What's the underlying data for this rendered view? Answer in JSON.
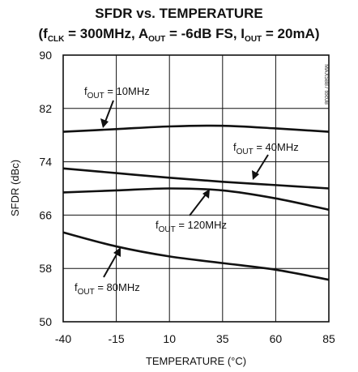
{
  "chart_data": {
    "type": "line",
    "title": "SFDR vs. TEMPERATURE",
    "subtitle_parts": [
      "(f",
      "CLK",
      " = 300MHz, A",
      "OUT",
      " = -6dB FS, I",
      "OUT",
      " = 20mA)"
    ],
    "xlabel": "TEMPERATURE (°C)",
    "ylabel": "SFDR (dBc)",
    "xlim": [
      -40,
      85
    ],
    "ylim": [
      50,
      90
    ],
    "xticks": [
      -40,
      -15,
      10,
      35,
      60,
      85
    ],
    "yticks": [
      50,
      58,
      66,
      74,
      82,
      90
    ],
    "grid": true,
    "side_note": "MAX5887 toc08",
    "series": [
      {
        "name_prefix": "f",
        "name_sub": "OUT",
        "name_suffix": " = 10MHz",
        "x": [
          -40,
          -15,
          10,
          35,
          60,
          85
        ],
        "y": [
          78.5,
          78.9,
          79.3,
          79.4,
          79.0,
          78.5
        ]
      },
      {
        "name_prefix": "f",
        "name_sub": "OUT",
        "name_suffix": " = 40MHz",
        "x": [
          -40,
          -15,
          10,
          35,
          60,
          85
        ],
        "y": [
          73.0,
          72.3,
          71.6,
          71.0,
          70.5,
          70.0
        ]
      },
      {
        "name_prefix": "f",
        "name_sub": "OUT",
        "name_suffix": " = 120MHz",
        "x": [
          -40,
          -15,
          10,
          35,
          60,
          85
        ],
        "y": [
          69.4,
          69.7,
          70.0,
          69.7,
          68.5,
          66.8
        ]
      },
      {
        "name_prefix": "f",
        "name_sub": "OUT",
        "name_suffix": " = 80MHz",
        "x": [
          -40,
          -15,
          10,
          35,
          60,
          85
        ],
        "y": [
          63.4,
          61.3,
          59.8,
          58.8,
          57.8,
          56.3
        ]
      }
    ]
  }
}
